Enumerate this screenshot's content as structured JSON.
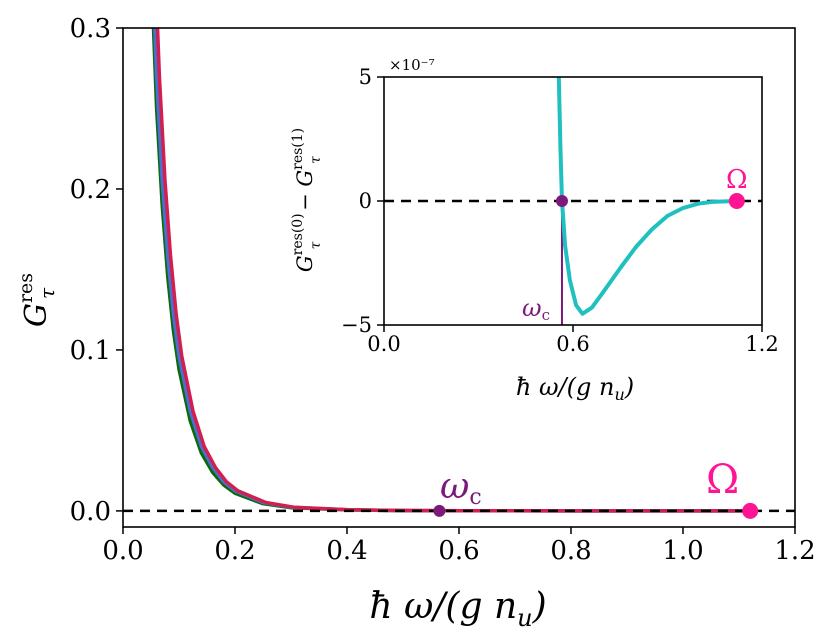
{
  "chart_data": [
    {
      "type": "line",
      "xlabel": "ħ ω/(g n_u)",
      "ylabel": "G_τ^res",
      "xlim": [
        0.0,
        1.2
      ],
      "ylim": [
        -0.01,
        0.3
      ],
      "xticks": [
        "0.0",
        "0.2",
        "0.4",
        "0.6",
        "0.8",
        "1.0",
        "1.2"
      ],
      "yticks": [
        "0.0",
        "0.1",
        "0.2",
        "0.3"
      ],
      "grid": false,
      "legend": "none",
      "series": [
        {
          "color": "#0a6a0a",
          "x": [
            0.05,
            0.06,
            0.07,
            0.08,
            0.09,
            0.1,
            0.12,
            0.14,
            0.16,
            0.18,
            0.2,
            0.25,
            0.3,
            0.4,
            0.5,
            0.6,
            0.8,
            1.0,
            1.12
          ],
          "y": [
            0.34,
            0.25,
            0.19,
            0.145,
            0.112,
            0.088,
            0.056,
            0.036,
            0.024,
            0.016,
            0.011,
            0.0045,
            0.002,
            0.0006,
            0.0002,
            0.0001,
            0.0,
            0.0,
            0.0
          ]
        },
        {
          "color": "#4a6fd0",
          "x": [
            0.05,
            0.06,
            0.07,
            0.08,
            0.09,
            0.1,
            0.12,
            0.14,
            0.16,
            0.18,
            0.2,
            0.25,
            0.3,
            0.4,
            0.5,
            0.6,
            0.8,
            1.0,
            1.12
          ],
          "y": [
            0.36,
            0.27,
            0.205,
            0.158,
            0.122,
            0.096,
            0.062,
            0.04,
            0.027,
            0.018,
            0.0125,
            0.0052,
            0.0023,
            0.0007,
            0.00025,
            0.0001,
            0.0,
            0.0,
            0.0
          ]
        },
        {
          "color": "#d21f4f",
          "x": [
            0.055,
            0.065,
            0.075,
            0.085,
            0.095,
            0.105,
            0.125,
            0.145,
            0.165,
            0.185,
            0.205,
            0.255,
            0.305,
            0.405,
            0.505,
            0.605,
            0.805,
            1.005,
            1.12
          ],
          "y": [
            0.36,
            0.27,
            0.205,
            0.158,
            0.122,
            0.096,
            0.062,
            0.04,
            0.027,
            0.018,
            0.0125,
            0.0052,
            0.0023,
            0.0007,
            0.00025,
            0.0001,
            0.0,
            0.0,
            0.0
          ]
        }
      ],
      "reference_line": {
        "y": 0.0,
        "style": "dashed"
      },
      "markers": [
        {
          "label": "ω_c",
          "x": 0.565,
          "y": 0.0,
          "color": "#7b1a7b"
        },
        {
          "label": "Ω",
          "x": 1.12,
          "y": 0.0,
          "color": "#ff1493"
        }
      ]
    },
    {
      "type": "line",
      "xlabel": "ħ ω/(g n_u)",
      "ylabel": "G_τ^res(0) − G_τ^res(1)",
      "scale_label": "×10⁻⁷",
      "xlim": [
        0.0,
        1.2
      ],
      "ylim": [
        -5,
        5
      ],
      "xticks": [
        "0.0",
        "0.6",
        "1.2"
      ],
      "yticks": [
        "−5",
        "0",
        "5"
      ],
      "series": [
        {
          "color": "#20c0c0",
          "x": [
            0.555,
            0.56,
            0.565,
            0.575,
            0.59,
            0.61,
            0.63,
            0.66,
            0.7,
            0.75,
            0.8,
            0.85,
            0.9,
            0.95,
            1.0,
            1.05,
            1.12
          ],
          "y": [
            5.0,
            2.2,
            0.0,
            -1.8,
            -3.2,
            -4.2,
            -4.55,
            -4.3,
            -3.6,
            -2.7,
            -1.85,
            -1.15,
            -0.6,
            -0.28,
            -0.1,
            -0.03,
            0.0
          ]
        }
      ],
      "reference_line": {
        "y": 0.0,
        "style": "dashed"
      },
      "vline": {
        "x": 0.565,
        "color": "#7b1a7b"
      },
      "markers": [
        {
          "label": "ω_c",
          "x": 0.565,
          "y": 0.0,
          "color": "#7b1a7b"
        },
        {
          "label": "Ω",
          "x": 1.12,
          "y": 0.0,
          "color": "#ff1493"
        }
      ]
    }
  ],
  "text": {
    "main_xlabel_prefix": "ħ ω/(g n",
    "main_xlabel_sub": "u",
    "main_xlabel_suffix": ")",
    "main_ylabel_base": "G",
    "main_ylabel_sub": "τ",
    "main_ylabel_sup": "res",
    "inset_ylabel_a": "G",
    "inset_ylabel_a_sup": "res(0)",
    "inset_ylabel_sub": "τ",
    "inset_ylabel_minus": " − ",
    "inset_ylabel_b": "G",
    "inset_ylabel_b_sup": "res(1)",
    "inset_xlabel_prefix": "ħ ω/(g n",
    "inset_xlabel_sub": "u",
    "inset_xlabel_suffix": ")",
    "inset_scale": "×10⁻⁷",
    "omega_c_base": "ω",
    "omega_c_sub": "c",
    "omega_big": "Ω"
  }
}
